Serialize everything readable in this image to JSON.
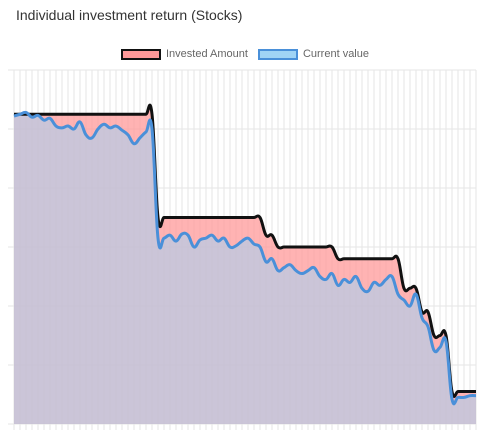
{
  "chart_data": {
    "type": "area",
    "title": "Individual investment return (Stocks)",
    "xlabel": "",
    "ylabel": "",
    "ylim": [
      0,
      6
    ],
    "grid": true,
    "legend_position": "top-center",
    "n_points": 78,
    "series": [
      {
        "name": "Invested Amount",
        "stroke": "#111111",
        "fill": "#ff9999",
        "fill_opacity": 0.75,
        "values": [
          5.25,
          5.25,
          5.25,
          5.25,
          5.25,
          5.25,
          5.25,
          5.25,
          5.25,
          5.25,
          5.25,
          5.25,
          5.25,
          5.25,
          5.25,
          5.25,
          5.25,
          5.25,
          5.25,
          5.25,
          5.25,
          5.25,
          5.25,
          5.25,
          3.5,
          3.5,
          3.5,
          3.5,
          3.5,
          3.5,
          3.5,
          3.5,
          3.5,
          3.5,
          3.5,
          3.5,
          3.5,
          3.5,
          3.5,
          3.5,
          3.5,
          3.5,
          3.2,
          3.2,
          3.0,
          3.0,
          3.0,
          3.0,
          3.0,
          3.0,
          3.0,
          3.0,
          3.0,
          3.0,
          2.8,
          2.8,
          2.8,
          2.8,
          2.8,
          2.8,
          2.8,
          2.8,
          2.8,
          2.8,
          2.8,
          2.3,
          2.3,
          2.3,
          1.9,
          1.9,
          1.5,
          1.5,
          1.5,
          0.55,
          0.55,
          0.55,
          0.55,
          0.55
        ]
      },
      {
        "name": "Current value",
        "stroke": "#4a90d9",
        "fill": "#a0d4f5",
        "fill_opacity": 0.55,
        "values": [
          5.22,
          5.25,
          5.28,
          5.2,
          5.23,
          5.15,
          5.18,
          5.05,
          5.02,
          5.05,
          5.0,
          5.12,
          4.9,
          4.85,
          5.0,
          5.08,
          5.02,
          5.05,
          4.98,
          4.9,
          4.75,
          4.85,
          4.95,
          5.0,
          3.15,
          3.15,
          3.2,
          3.1,
          3.22,
          3.2,
          3.0,
          3.12,
          3.15,
          3.2,
          3.1,
          3.15,
          3.0,
          3.02,
          3.1,
          3.15,
          3.05,
          3.0,
          2.75,
          2.8,
          2.6,
          2.65,
          2.7,
          2.6,
          2.55,
          2.6,
          2.65,
          2.5,
          2.45,
          2.55,
          2.35,
          2.45,
          2.4,
          2.5,
          2.3,
          2.25,
          2.4,
          2.35,
          2.45,
          2.5,
          2.2,
          2.1,
          2.0,
          2.2,
          1.8,
          1.65,
          1.25,
          1.3,
          1.4,
          0.42,
          0.45,
          0.45,
          0.48,
          0.48
        ]
      }
    ]
  }
}
